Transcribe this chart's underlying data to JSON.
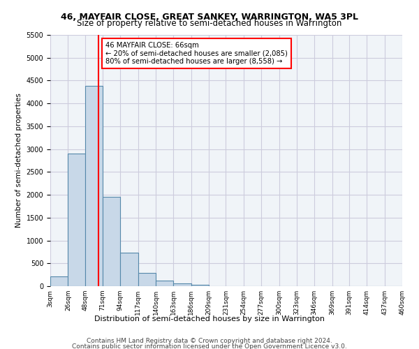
{
  "title1": "46, MAYFAIR CLOSE, GREAT SANKEY, WARRINGTON, WA5 3PL",
  "title2": "Size of property relative to semi-detached houses in Warrington",
  "xlabel": "Distribution of semi-detached houses by size in Warrington",
  "ylabel": "Number of semi-detached properties",
  "footnote1": "Contains HM Land Registry data © Crown copyright and database right 2024.",
  "footnote2": "Contains public sector information licensed under the Open Government Licence v3.0.",
  "annotation_title": "46 MAYFAIR CLOSE: 66sqm",
  "annotation_line1": "← 20% of semi-detached houses are smaller (2,085)",
  "annotation_line2": "80% of semi-detached houses are larger (8,558) →",
  "bar_values": [
    220,
    2900,
    4380,
    1950,
    730,
    290,
    115,
    65,
    30,
    0,
    0,
    0,
    0,
    0,
    0,
    0,
    0,
    0,
    0,
    0
  ],
  "bin_labels": [
    "3sqm",
    "26sqm",
    "48sqm",
    "71sqm",
    "94sqm",
    "117sqm",
    "140sqm",
    "163sqm",
    "186sqm",
    "209sqm",
    "231sqm",
    "254sqm",
    "277sqm",
    "300sqm",
    "323sqm",
    "346sqm",
    "369sqm",
    "391sqm",
    "414sqm",
    "437sqm",
    "460sqm"
  ],
  "bar_color": "#c8d8e8",
  "bar_edge_color": "#5588aa",
  "property_line_x": 66,
  "ylim": [
    0,
    5500
  ],
  "yticks": [
    0,
    500,
    1000,
    1500,
    2000,
    2500,
    3000,
    3500,
    4000,
    4500,
    5000,
    5500
  ],
  "annotation_box_color": "white",
  "annotation_box_edge": "red",
  "property_line_color": "red",
  "bg_color": "#f0f4f8",
  "grid_color": "#ccccdd"
}
